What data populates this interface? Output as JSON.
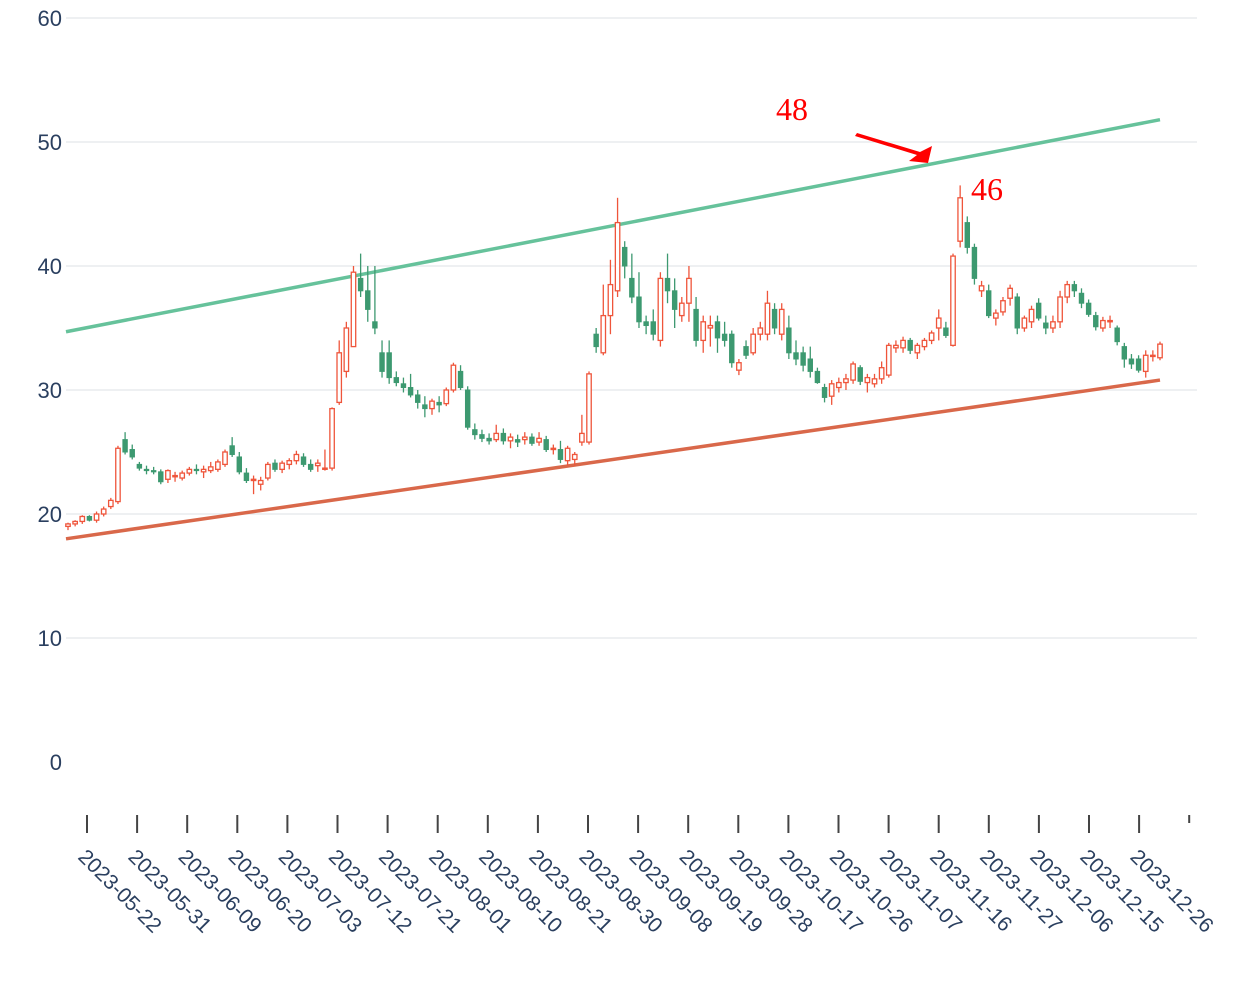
{
  "chart_data": {
    "type": "candlestick",
    "ylim": [
      0,
      60
    ],
    "yticks": [
      0,
      10,
      20,
      30,
      40,
      50,
      60
    ],
    "grid": true,
    "x_tick_labels": [
      "2023-05-22",
      "2023-05-31",
      "2023-06-09",
      "2023-06-20",
      "2023-07-03",
      "2023-07-12",
      "2023-07-21",
      "2023-08-01",
      "2023-08-10",
      "2023-08-21",
      "2023-08-30",
      "2023-09-08",
      "2023-09-19",
      "2023-09-28",
      "2023-10-17",
      "2023-10-26",
      "2023-11-07",
      "2023-11-16",
      "2023-11-27",
      "2023-12-06",
      "2023-12-15",
      "2023-12-26"
    ],
    "colors": {
      "up": "#ef553b",
      "down": "#3d9970",
      "upper_line": "#66c29b",
      "lower_line": "#d9684a",
      "annotation": "#ff0000"
    },
    "ohlc": [
      [
        19.0,
        19.3,
        18.7,
        19.2
      ],
      [
        19.2,
        19.5,
        19.0,
        19.4
      ],
      [
        19.4,
        19.9,
        19.2,
        19.8
      ],
      [
        19.8,
        19.9,
        19.4,
        19.5
      ],
      [
        19.5,
        20.2,
        19.3,
        20.0
      ],
      [
        20.0,
        20.6,
        19.8,
        20.4
      ],
      [
        20.6,
        21.3,
        20.4,
        21.1
      ],
      [
        21.0,
        25.5,
        20.8,
        25.3
      ],
      [
        26.0,
        26.6,
        24.8,
        25.0
      ],
      [
        25.2,
        25.6,
        24.4,
        24.6
      ],
      [
        24.0,
        24.2,
        23.5,
        23.7
      ],
      [
        23.6,
        23.9,
        23.2,
        23.5
      ],
      [
        23.5,
        23.8,
        23.2,
        23.4
      ],
      [
        23.4,
        23.6,
        22.4,
        22.6
      ],
      [
        22.8,
        23.6,
        22.5,
        23.5
      ],
      [
        23.0,
        23.4,
        22.6,
        23.1
      ],
      [
        22.9,
        23.5,
        22.7,
        23.3
      ],
      [
        23.3,
        23.8,
        23.1,
        23.6
      ],
      [
        23.6,
        24.0,
        23.2,
        23.5
      ],
      [
        23.4,
        23.9,
        22.9,
        23.6
      ],
      [
        23.5,
        24.2,
        23.3,
        23.8
      ],
      [
        23.6,
        24.4,
        23.4,
        24.2
      ],
      [
        24.0,
        25.2,
        23.8,
        25.0
      ],
      [
        25.5,
        26.2,
        24.6,
        24.8
      ],
      [
        24.6,
        25.0,
        23.2,
        23.4
      ],
      [
        23.3,
        23.7,
        22.5,
        22.7
      ],
      [
        22.7,
        23.1,
        21.6,
        22.8
      ],
      [
        22.4,
        23.0,
        21.9,
        22.7
      ],
      [
        22.9,
        24.2,
        22.7,
        24.0
      ],
      [
        24.1,
        24.4,
        23.4,
        23.6
      ],
      [
        23.6,
        24.3,
        23.3,
        24.1
      ],
      [
        24.0,
        24.5,
        23.6,
        24.3
      ],
      [
        24.3,
        25.1,
        24.0,
        24.8
      ],
      [
        24.6,
        24.9,
        23.8,
        24.0
      ],
      [
        24.0,
        24.4,
        23.4,
        23.6
      ],
      [
        23.9,
        24.4,
        23.4,
        24.1
      ],
      [
        23.7,
        25.2,
        23.5,
        23.7
      ],
      [
        23.7,
        28.6,
        23.5,
        28.5
      ],
      [
        29.0,
        34.0,
        28.8,
        33.0
      ],
      [
        31.5,
        35.5,
        31.0,
        35.0
      ],
      [
        33.5,
        40.0,
        33.5,
        39.5
      ],
      [
        39.0,
        41.0,
        37.5,
        38.0
      ],
      [
        38.0,
        40.0,
        35.5,
        36.5
      ],
      [
        35.5,
        40.0,
        34.5,
        35.0
      ],
      [
        33.0,
        34.0,
        31.0,
        31.5
      ],
      [
        33.0,
        34.0,
        30.5,
        31.0
      ],
      [
        31.0,
        31.5,
        30.3,
        30.6
      ],
      [
        30.5,
        31.0,
        29.8,
        30.2
      ],
      [
        30.2,
        31.3,
        29.4,
        29.6
      ],
      [
        29.6,
        30.0,
        28.5,
        29.0
      ],
      [
        28.8,
        29.5,
        27.8,
        28.5
      ],
      [
        28.5,
        29.3,
        28.0,
        29.1
      ],
      [
        29.0,
        29.5,
        28.2,
        28.8
      ],
      [
        28.9,
        30.2,
        28.7,
        30.0
      ],
      [
        30.0,
        32.2,
        29.8,
        32.0
      ],
      [
        31.5,
        32.0,
        30.0,
        30.2
      ],
      [
        30.0,
        30.3,
        26.8,
        27.0
      ],
      [
        26.8,
        27.3,
        26.0,
        26.4
      ],
      [
        26.4,
        26.8,
        25.8,
        26.1
      ],
      [
        26.1,
        26.5,
        25.6,
        25.9
      ],
      [
        26.0,
        27.2,
        25.8,
        26.5
      ],
      [
        26.5,
        26.9,
        25.6,
        25.9
      ],
      [
        25.9,
        26.5,
        25.3,
        26.2
      ],
      [
        26.0,
        26.4,
        25.4,
        25.8
      ],
      [
        26.0,
        26.6,
        25.6,
        26.2
      ],
      [
        26.2,
        26.5,
        25.5,
        25.7
      ],
      [
        25.8,
        26.6,
        25.5,
        26.1
      ],
      [
        26.0,
        26.3,
        25.0,
        25.2
      ],
      [
        25.2,
        25.6,
        24.8,
        25.3
      ],
      [
        25.2,
        25.9,
        24.1,
        24.4
      ],
      [
        24.3,
        25.5,
        23.9,
        25.3
      ],
      [
        24.4,
        25.0,
        23.9,
        24.8
      ],
      [
        25.8,
        28.0,
        25.5,
        26.5
      ],
      [
        25.8,
        31.5,
        25.6,
        31.3
      ],
      [
        34.5,
        35.0,
        33.0,
        33.5
      ],
      [
        33.0,
        38.5,
        32.8,
        36.0
      ],
      [
        36.0,
        40.5,
        34.5,
        38.5
      ],
      [
        38.0,
        45.5,
        37.5,
        43.5
      ],
      [
        41.5,
        42.0,
        39.0,
        40.0
      ],
      [
        39.0,
        41.0,
        37.0,
        37.5
      ],
      [
        37.5,
        39.5,
        35.0,
        35.5
      ],
      [
        35.5,
        36.0,
        34.5,
        35.2
      ],
      [
        35.5,
        36.5,
        34.0,
        34.5
      ],
      [
        34.0,
        39.5,
        33.5,
        39.0
      ],
      [
        39.0,
        41.0,
        37.0,
        38.0
      ],
      [
        38.0,
        39.0,
        35.0,
        36.5
      ],
      [
        36.0,
        37.5,
        35.5,
        37.0
      ],
      [
        37.0,
        40.0,
        35.5,
        39.0
      ],
      [
        36.5,
        37.5,
        33.5,
        34.0
      ],
      [
        34.0,
        36.0,
        33.0,
        35.5
      ],
      [
        35.0,
        36.0,
        33.5,
        35.2
      ],
      [
        35.5,
        36.0,
        33.0,
        34.2
      ],
      [
        34.5,
        35.5,
        33.5,
        34.0
      ],
      [
        34.5,
        34.8,
        31.8,
        32.2
      ],
      [
        31.6,
        32.5,
        31.2,
        32.2
      ],
      [
        33.5,
        34.0,
        32.5,
        32.8
      ],
      [
        33.0,
        35.0,
        32.8,
        34.5
      ],
      [
        34.5,
        35.5,
        34.0,
        35.0
      ],
      [
        34.5,
        38.0,
        34.0,
        37.0
      ],
      [
        36.5,
        37.0,
        34.5,
        35.0
      ],
      [
        34.5,
        37.0,
        34.0,
        36.5
      ],
      [
        35.0,
        36.0,
        32.5,
        33.0
      ],
      [
        33.0,
        34.0,
        32.0,
        32.5
      ],
      [
        33.0,
        33.5,
        31.5,
        32.0
      ],
      [
        32.5,
        33.5,
        31.0,
        31.5
      ],
      [
        31.5,
        31.8,
        30.5,
        30.6
      ],
      [
        30.2,
        30.5,
        29.0,
        29.4
      ],
      [
        29.5,
        30.8,
        28.8,
        30.5
      ],
      [
        30.2,
        31.0,
        29.8,
        30.6
      ],
      [
        30.6,
        31.3,
        30.0,
        30.9
      ],
      [
        30.8,
        32.3,
        30.5,
        32.1
      ],
      [
        31.8,
        32.0,
        30.4,
        30.7
      ],
      [
        30.6,
        31.3,
        29.8,
        31.0
      ],
      [
        30.5,
        31.3,
        30.2,
        30.9
      ],
      [
        30.9,
        32.3,
        30.5,
        31.8
      ],
      [
        31.2,
        33.8,
        31.0,
        33.6
      ],
      [
        33.4,
        34.0,
        33.0,
        33.6
      ],
      [
        33.4,
        34.3,
        33.0,
        34.0
      ],
      [
        34.0,
        34.2,
        32.9,
        33.2
      ],
      [
        33.0,
        33.8,
        32.5,
        33.6
      ],
      [
        33.5,
        34.2,
        33.2,
        34.0
      ],
      [
        34.0,
        34.8,
        33.7,
        34.6
      ],
      [
        35.0,
        36.5,
        34.0,
        35.8
      ],
      [
        35.0,
        35.5,
        34.2,
        34.4
      ],
      [
        33.6,
        41.0,
        33.5,
        40.8
      ],
      [
        42.0,
        46.5,
        41.5,
        45.5
      ],
      [
        43.5,
        44.0,
        41.0,
        41.5
      ],
      [
        41.5,
        41.8,
        38.5,
        39.0
      ],
      [
        38.0,
        38.8,
        37.5,
        38.4
      ],
      [
        38.0,
        38.5,
        35.8,
        36.0
      ],
      [
        35.8,
        36.5,
        35.2,
        36.2
      ],
      [
        36.3,
        37.5,
        36.0,
        37.2
      ],
      [
        37.4,
        38.5,
        36.8,
        38.2
      ],
      [
        37.5,
        37.8,
        34.5,
        35.0
      ],
      [
        35.0,
        36.0,
        34.7,
        35.8
      ],
      [
        35.5,
        36.8,
        35.0,
        36.5
      ],
      [
        37.0,
        37.4,
        35.6,
        35.8
      ],
      [
        35.4,
        36.0,
        34.5,
        35.0
      ],
      [
        35.0,
        36.0,
        34.6,
        35.5
      ],
      [
        35.5,
        38.0,
        35.0,
        37.5
      ],
      [
        37.5,
        38.8,
        37.0,
        38.5
      ],
      [
        38.5,
        38.8,
        37.5,
        38.0
      ],
      [
        37.8,
        38.2,
        36.6,
        37.0
      ],
      [
        37.0,
        37.3,
        35.9,
        36.1
      ],
      [
        36.0,
        36.3,
        34.8,
        35.1
      ],
      [
        35.0,
        35.9,
        34.7,
        35.6
      ],
      [
        35.5,
        36.0,
        35.0,
        35.6
      ],
      [
        35.0,
        35.2,
        33.6,
        33.9
      ],
      [
        33.5,
        33.8,
        31.8,
        32.5
      ],
      [
        32.5,
        32.9,
        31.7,
        32.1
      ],
      [
        32.5,
        32.8,
        31.4,
        31.6
      ],
      [
        31.5,
        33.2,
        31.0,
        32.8
      ],
      [
        32.8,
        33.2,
        32.3,
        32.8
      ],
      [
        32.6,
        33.9,
        32.4,
        33.7
      ]
    ],
    "trendlines": [
      {
        "name": "",
        "start": 34.7,
        "end": 51.8
      },
      {
        "name": "",
        "start": 18.0,
        "end": 30.8
      }
    ],
    "annotations": [
      {
        "text": "48"
      },
      {
        "text": "46"
      }
    ]
  }
}
